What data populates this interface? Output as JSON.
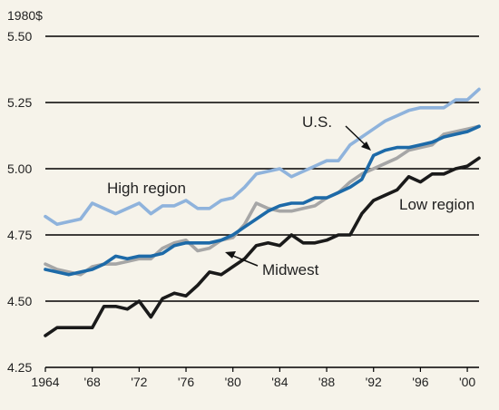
{
  "chart_data": {
    "type": "line",
    "y_unit_label": "1980$",
    "ylim": [
      4.25,
      5.5
    ],
    "xlim": [
      1964,
      2001
    ],
    "y_ticks": [
      5.5,
      5.25,
      5.0,
      4.75,
      4.5,
      4.25
    ],
    "y_tick_labels": [
      "5.50",
      "5.25",
      "5.00",
      "4.75",
      "4.50",
      "4.25"
    ],
    "x_ticks": [
      1964,
      1968,
      1972,
      1976,
      1980,
      1984,
      1988,
      1992,
      1996,
      2000
    ],
    "x_tick_labels": [
      "1964",
      "'68",
      "'72",
      "'76",
      "'80",
      "'84",
      "'88",
      "'92",
      "'96",
      "'00"
    ],
    "grid": "horizontal",
    "x": [
      1964,
      1965,
      1966,
      1967,
      1968,
      1969,
      1970,
      1971,
      1972,
      1973,
      1974,
      1975,
      1976,
      1977,
      1978,
      1979,
      1980,
      1981,
      1982,
      1983,
      1984,
      1985,
      1986,
      1987,
      1988,
      1989,
      1990,
      1991,
      1992,
      1993,
      1994,
      1995,
      1996,
      1997,
      1998,
      1999,
      2000,
      2001
    ],
    "series": [
      {
        "name": "High region",
        "color": "#8fb3dc",
        "values": [
          4.82,
          4.79,
          4.8,
          4.81,
          4.87,
          4.85,
          4.83,
          4.85,
          4.87,
          4.83,
          4.86,
          4.86,
          4.88,
          4.85,
          4.85,
          4.88,
          4.89,
          4.93,
          4.98,
          4.99,
          5.0,
          4.97,
          4.99,
          5.01,
          5.03,
          5.03,
          5.09,
          5.12,
          5.15,
          5.18,
          5.2,
          5.22,
          5.23,
          5.23,
          5.23,
          5.26,
          5.26,
          5.3
        ]
      },
      {
        "name": "Midwest",
        "color": "#a6a6a6",
        "values": [
          4.64,
          4.62,
          4.61,
          4.6,
          4.63,
          4.64,
          4.64,
          4.65,
          4.66,
          4.66,
          4.7,
          4.72,
          4.73,
          4.69,
          4.7,
          4.73,
          4.74,
          4.79,
          4.87,
          4.85,
          4.84,
          4.84,
          4.85,
          4.86,
          4.89,
          4.91,
          4.95,
          4.98,
          5.0,
          5.02,
          5.04,
          5.07,
          5.08,
          5.09,
          5.13,
          5.14,
          5.15,
          5.16
        ]
      },
      {
        "name": "U.S.",
        "color": "#1d6aa8",
        "values": [
          4.62,
          4.61,
          4.6,
          4.61,
          4.62,
          4.64,
          4.67,
          4.66,
          4.67,
          4.67,
          4.68,
          4.71,
          4.72,
          4.72,
          4.72,
          4.73,
          4.75,
          4.78,
          4.81,
          4.84,
          4.86,
          4.87,
          4.87,
          4.89,
          4.89,
          4.91,
          4.93,
          4.96,
          5.05,
          5.07,
          5.08,
          5.08,
          5.09,
          5.1,
          5.12,
          5.13,
          5.14,
          5.16
        ]
      },
      {
        "name": "Low region",
        "color": "#1a1a1a",
        "values": [
          4.37,
          4.4,
          4.4,
          4.4,
          4.4,
          4.48,
          4.48,
          4.47,
          4.5,
          4.44,
          4.51,
          4.53,
          4.52,
          4.56,
          4.61,
          4.6,
          4.63,
          4.66,
          4.71,
          4.72,
          4.71,
          4.75,
          4.72,
          4.72,
          4.73,
          4.75,
          4.75,
          4.83,
          4.88,
          4.9,
          4.92,
          4.97,
          4.95,
          4.98,
          4.98,
          5.0,
          5.01,
          5.04
        ]
      }
    ],
    "annotations": {
      "high_region": "High region",
      "us": "U.S.",
      "midwest": "Midwest",
      "low_region": "Low region"
    }
  }
}
